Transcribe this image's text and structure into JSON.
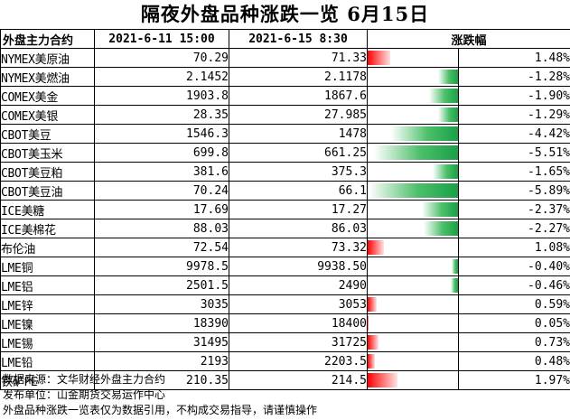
{
  "title": "隔夜外盘品种涨跌一览 6月15日",
  "headers": {
    "name": "外盘主力合约",
    "date1": "2021-6-11 15:00",
    "date2": "2021-6-15 8:30",
    "change": "涨跌幅"
  },
  "chart_data": {
    "type": "table",
    "colors": {
      "up": "#ff0000",
      "down": "#1aa047"
    },
    "bar_scale_max_abs_pct": 5.89,
    "rows": [
      {
        "name": "NYMEX美原油",
        "v1": "70.29",
        "v2": "71.33",
        "pct_label": "1.48%",
        "pct": 1.48
      },
      {
        "name": "NYMEX美燃油",
        "v1": "2.1452",
        "v2": "2.1178",
        "pct_label": "-1.28%",
        "pct": -1.28
      },
      {
        "name": "COMEX美金",
        "v1": "1903.8",
        "v2": "1867.6",
        "pct_label": "-1.90%",
        "pct": -1.9
      },
      {
        "name": "COMEX美银",
        "v1": "28.35",
        "v2": "27.985",
        "pct_label": "-1.29%",
        "pct": -1.29
      },
      {
        "name": "CBOT美豆",
        "v1": "1546.3",
        "v2": "1478",
        "pct_label": "-4.42%",
        "pct": -4.42
      },
      {
        "name": "CBOT美玉米",
        "v1": "699.8",
        "v2": "661.25",
        "pct_label": "-5.51%",
        "pct": -5.51
      },
      {
        "name": "CBOT美豆粕",
        "v1": "381.6",
        "v2": "375.3",
        "pct_label": "-1.65%",
        "pct": -1.65
      },
      {
        "name": "CBOT美豆油",
        "v1": "70.24",
        "v2": "66.1",
        "pct_label": "-5.89%",
        "pct": -5.89
      },
      {
        "name": "ICE美糖",
        "v1": "17.69",
        "v2": "17.27",
        "pct_label": "-2.37%",
        "pct": -2.37
      },
      {
        "name": "ICE美棉花",
        "v1": "88.03",
        "v2": "86.03",
        "pct_label": "-2.27%",
        "pct": -2.27
      },
      {
        "name": "布伦油",
        "v1": "72.54",
        "v2": "73.32",
        "pct_label": "1.08%",
        "pct": 1.08
      },
      {
        "name": "LME铜",
        "v1": "9978.5",
        "v2": "9938.50",
        "pct_label": "-0.40%",
        "pct": -0.4
      },
      {
        "name": "LME铝",
        "v1": "2501.5",
        "v2": "2490",
        "pct_label": "-0.46%",
        "pct": -0.46
      },
      {
        "name": "LME锌",
        "v1": "3035",
        "v2": "3053",
        "pct_label": "0.59%",
        "pct": 0.59
      },
      {
        "name": "LME镍",
        "v1": "18390",
        "v2": "18400",
        "pct_label": "0.05%",
        "pct": 0.05
      },
      {
        "name": "LME锡",
        "v1": "31495",
        "v2": "31725",
        "pct_label": "0.73%",
        "pct": 0.73
      },
      {
        "name": "LME铅",
        "v1": "2193",
        "v2": "2203.5",
        "pct_label": "0.48%",
        "pct": 0.48
      },
      {
        "name": "铁矿FE",
        "v1": "210.35",
        "v2": "214.5",
        "pct_label": "1.97%",
        "pct": 1.97
      }
    ]
  },
  "notes": {
    "source": "数据来源：文华财经外盘主力合约",
    "publisher": "发布单位：山金期货交易运作中心",
    "disclaimer": "外盘品种涨跌一览表仅为数据引用，不构成交易指导，请谨慎操作"
  }
}
